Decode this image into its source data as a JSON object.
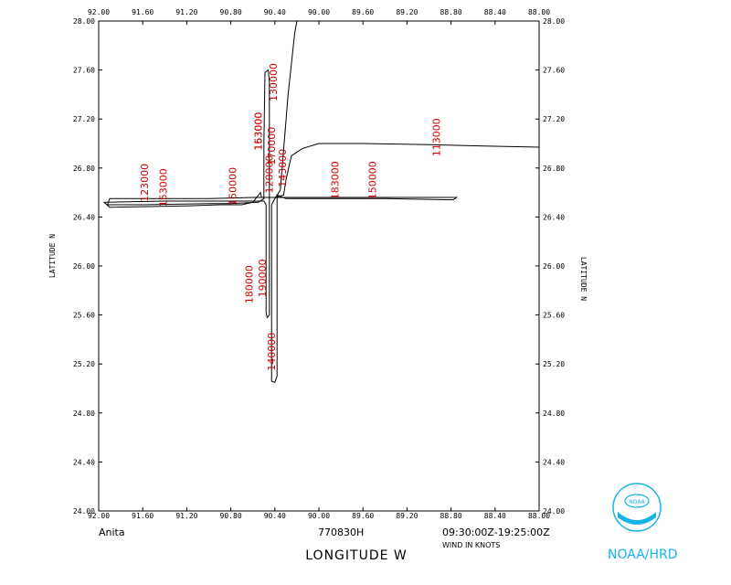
{
  "chart_data": {
    "type": "line",
    "xlabel": "LONGITUDE   W",
    "ylabel": "LATITUDE   N",
    "x_range": [
      92.0,
      88.0
    ],
    "y_range": [
      24.0,
      28.0
    ],
    "x_ticks": [
      "92.00",
      "91.60",
      "91.20",
      "90.80",
      "90.40",
      "90.00",
      "89.60",
      "89.20",
      "88.80",
      "88.40",
      "88.00"
    ],
    "y_ticks": [
      "24.00",
      "24.40",
      "24.80",
      "25.20",
      "25.60",
      "26.00",
      "26.40",
      "26.80",
      "27.20",
      "27.60",
      "28.00"
    ],
    "grid": false,
    "storm_name": "Anita",
    "date_code": "770830H",
    "time_range": "09:30:00Z-19:25:00Z",
    "wind_note": "WIND IN KNOTS",
    "series": [
      {
        "points": [
          [
            88.0,
            26.97
          ],
          [
            88.5,
            26.98
          ],
          [
            89.0,
            26.99
          ],
          [
            89.6,
            27.0
          ],
          [
            90.0,
            27.0
          ],
          [
            90.15,
            26.96
          ],
          [
            90.25,
            26.9
          ],
          [
            90.3,
            26.7
          ],
          [
            90.32,
            26.58
          ],
          [
            90.4,
            26.56
          ],
          [
            90.6,
            26.56
          ],
          [
            91.0,
            26.55
          ],
          [
            91.5,
            26.55
          ],
          [
            91.9,
            26.55
          ],
          [
            91.92,
            26.5
          ],
          [
            91.6,
            26.5
          ],
          [
            91.0,
            26.51
          ],
          [
            90.8,
            26.51
          ],
          [
            90.55,
            26.52
          ],
          [
            90.5,
            26.55
          ],
          [
            90.5,
            27.0
          ],
          [
            90.49,
            27.58
          ],
          [
            90.46,
            27.6
          ],
          [
            90.45,
            27.5
          ],
          [
            90.45,
            26.8
          ],
          [
            90.45,
            26.2
          ],
          [
            90.45,
            25.6
          ],
          [
            90.47,
            25.58
          ],
          [
            90.48,
            25.62
          ],
          [
            90.48,
            26.2
          ],
          [
            90.48,
            26.5
          ],
          [
            90.5,
            26.53
          ],
          [
            90.9,
            26.53
          ],
          [
            91.4,
            26.53
          ],
          [
            91.95,
            26.52
          ],
          [
            91.9,
            26.48
          ],
          [
            91.2,
            26.49
          ],
          [
            90.9,
            26.5
          ],
          [
            90.7,
            26.5
          ],
          [
            90.6,
            26.52
          ],
          [
            90.53,
            26.6
          ],
          [
            90.52,
            26.56
          ],
          [
            90.4,
            26.56
          ],
          [
            89.6,
            26.56
          ],
          [
            89.0,
            26.56
          ],
          [
            88.75,
            26.56
          ],
          [
            88.78,
            26.54
          ],
          [
            89.4,
            26.55
          ],
          [
            90.3,
            26.55
          ],
          [
            90.38,
            26.58
          ],
          [
            90.38,
            26.2
          ],
          [
            90.38,
            25.6
          ],
          [
            90.38,
            25.1
          ],
          [
            90.4,
            25.05
          ],
          [
            90.43,
            25.06
          ],
          [
            90.43,
            25.6
          ],
          [
            90.43,
            26.2
          ],
          [
            90.43,
            26.5
          ],
          [
            90.4,
            26.55
          ],
          [
            90.35,
            26.62
          ],
          [
            90.28,
            27.4
          ],
          [
            90.22,
            27.9
          ],
          [
            90.2,
            28.0
          ]
        ]
      }
    ],
    "time_labels": [
      {
        "text": "130000",
        "lon": 90.38,
        "lat": 27.5
      },
      {
        "text": "113000",
        "lon": 88.9,
        "lat": 27.05
      },
      {
        "text": "163000",
        "lon": 90.52,
        "lat": 27.1
      },
      {
        "text": "153000",
        "lon": 90.52,
        "lat": 27.1
      },
      {
        "text": "170000",
        "lon": 90.4,
        "lat": 26.98
      },
      {
        "text": "120000",
        "lon": 90.42,
        "lat": 26.75
      },
      {
        "text": "143000",
        "lon": 90.3,
        "lat": 26.8
      },
      {
        "text": "123000",
        "lon": 91.55,
        "lat": 26.68
      },
      {
        "text": "153000",
        "lon": 91.38,
        "lat": 26.64
      },
      {
        "text": "150000",
        "lon": 90.75,
        "lat": 26.65
      },
      {
        "text": "183000",
        "lon": 89.82,
        "lat": 26.7
      },
      {
        "text": "150000",
        "lon": 89.48,
        "lat": 26.7
      },
      {
        "text": "180000",
        "lon": 90.6,
        "lat": 25.85
      },
      {
        "text": "190000",
        "lon": 90.48,
        "lat": 25.9
      },
      {
        "text": "140000",
        "lon": 90.4,
        "lat": 25.3
      }
    ]
  },
  "logo": {
    "text": "NOAA/HRD",
    "emblem_text": "NOAA"
  },
  "colors": {
    "track": "#000000",
    "labels": "#cc0000",
    "logo": "#18b4e8"
  }
}
